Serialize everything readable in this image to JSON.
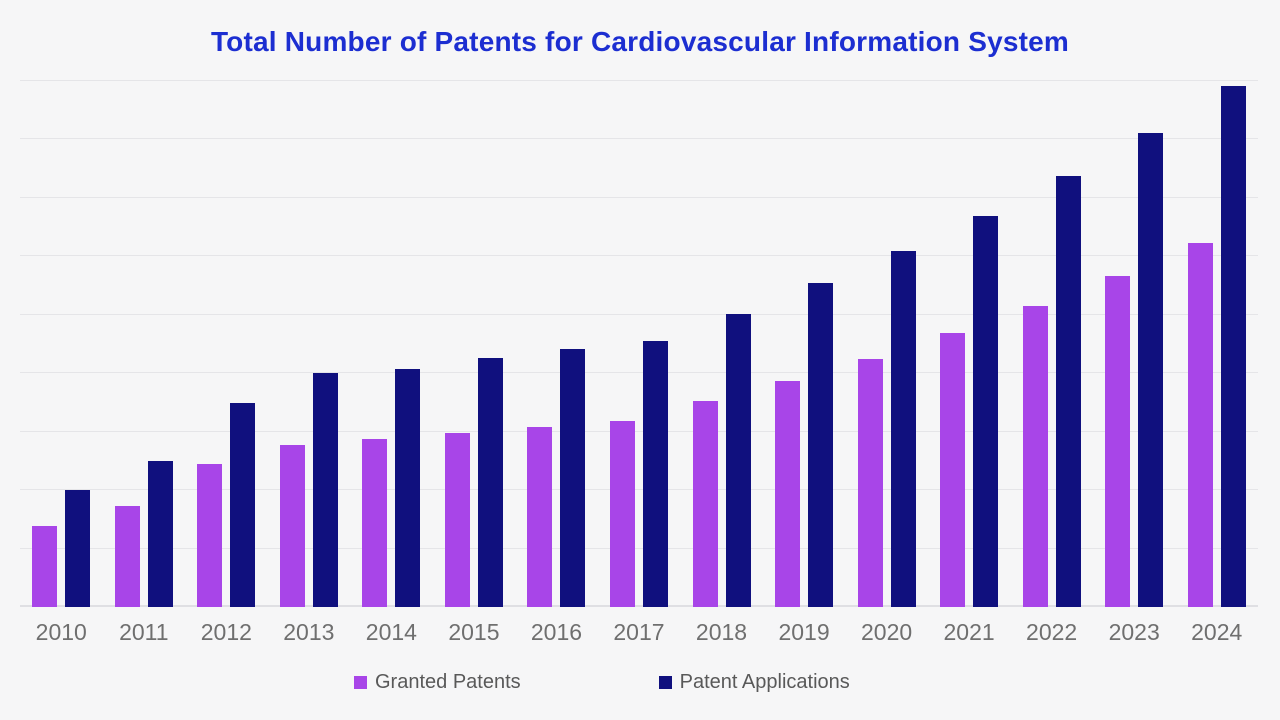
{
  "title": "Total Number of Patents for Cardiovascular Information System",
  "colors": {
    "background": "#f6f6f7",
    "title": "#1c2ed1",
    "granted_patents": "#a845e8",
    "patent_applications": "#10107e",
    "axis_label": "#6f6f6f",
    "legend_text": "#595959",
    "gridline": "#e5e5e8"
  },
  "legend": [
    {
      "label": "Granted Patents",
      "color": "#a845e8"
    },
    {
      "label": "Patent Applications",
      "color": "#10107e"
    }
  ],
  "chart_data": {
    "type": "bar",
    "title": "Total Number of Patents for Cardiovascular Information System",
    "categories": [
      "2010",
      "2011",
      "2012",
      "2013",
      "2014",
      "2015",
      "2016",
      "2017",
      "2018",
      "2019",
      "2020",
      "2021",
      "2022",
      "2023",
      "2024"
    ],
    "series": [
      {
        "name": "Granted Patents",
        "color": "#a845e8",
        "values": [
          139,
          173,
          244,
          278,
          287,
          297,
          308,
          318,
          352,
          386,
          425,
          468,
          515,
          566,
          623
        ]
      },
      {
        "name": "Patent Applications",
        "color": "#10107e",
        "values": [
          200,
          249,
          349,
          400,
          408,
          426,
          441,
          456,
          502,
          554,
          609,
          669,
          738,
          811,
          891
        ]
      }
    ],
    "xlabel": "",
    "ylabel": "",
    "ylim": [
      0,
      900
    ],
    "gridline_interval": 100,
    "grid": true,
    "y_axis_labels_shown": false,
    "legend_position": "bottom"
  }
}
